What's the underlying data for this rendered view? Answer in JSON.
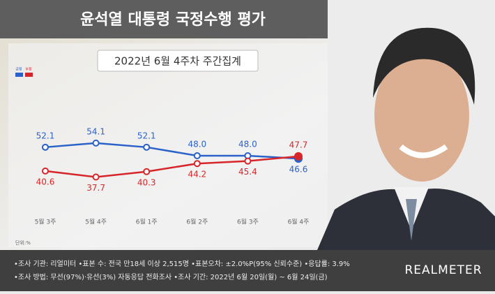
{
  "chart_data": {
    "type": "line",
    "title": "윤석열 대통령 국정수행 평가",
    "subtitle": "2022년 6월 4주차 주간집계",
    "categories": [
      "5월 3주",
      "5월 4주",
      "6월 1주",
      "6월 2주",
      "6월 3주",
      "6월 4주"
    ],
    "series": [
      {
        "name": "긍정",
        "color": "#2a62c9",
        "values": [
          52.1,
          54.1,
          52.1,
          48.0,
          48.0,
          46.6
        ],
        "value_labels": [
          "52.1",
          "54.1",
          "52.1",
          "48.0",
          "48.0",
          "46.6"
        ]
      },
      {
        "name": "부정",
        "color": "#d7262a",
        "values": [
          40.6,
          37.7,
          40.3,
          44.2,
          45.4,
          47.7
        ]
      }
    ],
    "ylim": [
      22,
      76
    ],
    "unit_note": "단위:%"
  },
  "notes": [
    "•조사 기관: 리얼미터 •표본 수: 전국 만18세 이상 2,515명 •표본오차: ±2.0%P(95% 신뢰수준) •응답률: 3.9%",
    "•조사 방법: 무선(97%)·유선(3%) 자동응답 전화조사 •조사 기간: 2022년 6월 20일(월) ~ 6월 24일(금)"
  ],
  "brand": "REALMETER"
}
